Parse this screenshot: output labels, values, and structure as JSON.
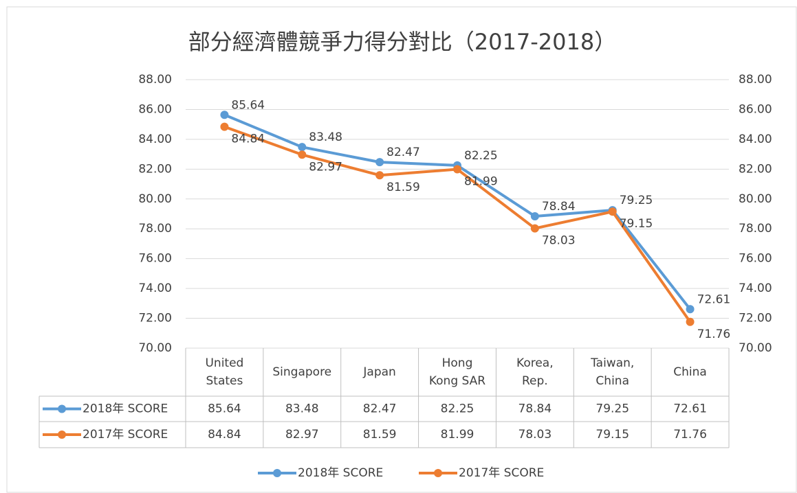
{
  "chart_data": {
    "type": "line",
    "title": "部分經濟體競爭力得分對比（2017-2018）",
    "categories": [
      "United States",
      "Singapore",
      "Japan",
      "Hong Kong SAR",
      "Korea, Rep.",
      "Taiwan, China",
      "China"
    ],
    "series": [
      {
        "name": "2018年 SCORE",
        "color": "#5b9bd5",
        "values": [
          85.64,
          83.48,
          82.47,
          82.25,
          78.84,
          79.25,
          72.61
        ]
      },
      {
        "name": "2017年 SCORE",
        "color": "#ed7d31",
        "values": [
          84.84,
          82.97,
          81.59,
          81.99,
          78.03,
          79.15,
          71.76
        ]
      }
    ],
    "ylim": [
      70,
      88
    ],
    "yticks": [
      {
        "value": 70,
        "label": "70.00"
      },
      {
        "value": 72,
        "label": "72.00"
      },
      {
        "value": 74,
        "label": "74.00"
      },
      {
        "value": 76,
        "label": "76.00"
      },
      {
        "value": 78,
        "label": "78.00"
      },
      {
        "value": 80,
        "label": "80.00"
      },
      {
        "value": 82,
        "label": "82.00"
      },
      {
        "value": 84,
        "label": "84.00"
      },
      {
        "value": 86,
        "label": "86.00"
      },
      {
        "value": 88,
        "label": "88.00"
      }
    ],
    "y2lim": [
      70,
      88
    ],
    "y2ticks": [
      {
        "value": 70,
        "label": "70.00"
      },
      {
        "value": 72,
        "label": "72.00"
      },
      {
        "value": 74,
        "label": "74.00"
      },
      {
        "value": 76,
        "label": "76.00"
      },
      {
        "value": 78,
        "label": "78.00"
      },
      {
        "value": 80,
        "label": "80.00"
      },
      {
        "value": 82,
        "label": "82.00"
      },
      {
        "value": 84,
        "label": "84.00"
      },
      {
        "value": 86,
        "label": "86.00"
      },
      {
        "value": 88,
        "label": "88.00"
      }
    ],
    "grid": true,
    "legend": "bottom"
  }
}
